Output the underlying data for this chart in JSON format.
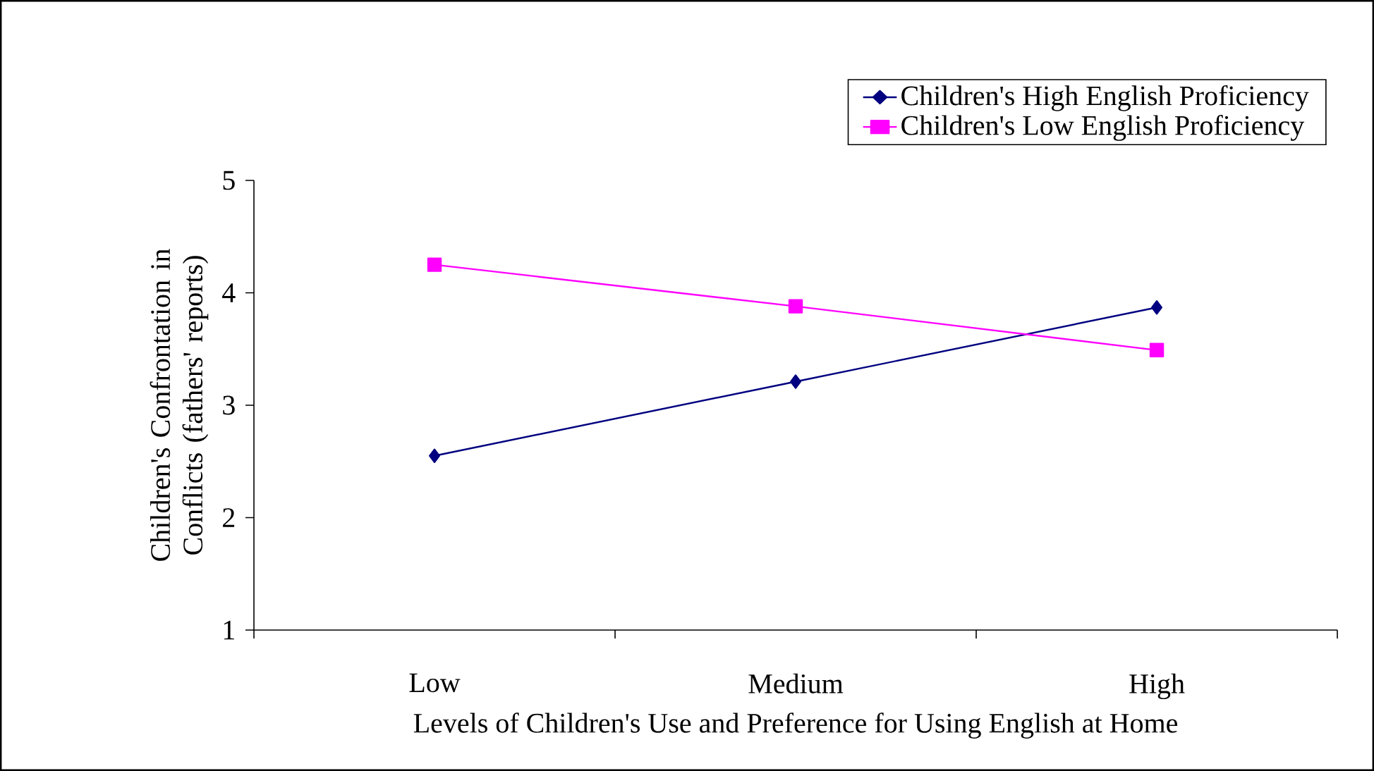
{
  "chart_data": {
    "type": "line",
    "xlabel": "Levels of Children's Use and Preference for Using English at Home",
    "ylabel": "Children's Confrontation in Conflicts (fathers' reports)",
    "categories": [
      "Low",
      "Medium",
      "High"
    ],
    "series": [
      {
        "name": "Children's High English Proficiency",
        "color": "#000080",
        "marker": "diamond",
        "values": [
          2.55,
          3.21,
          3.87
        ]
      },
      {
        "name": "Children's Low English Proficiency",
        "color": "#ff00ff",
        "marker": "square",
        "values": [
          4.25,
          3.88,
          3.49
        ]
      }
    ],
    "ylim": [
      1,
      5
    ],
    "yticks": [
      1,
      2,
      3,
      4,
      5
    ],
    "grid": false,
    "legend": "top right"
  }
}
